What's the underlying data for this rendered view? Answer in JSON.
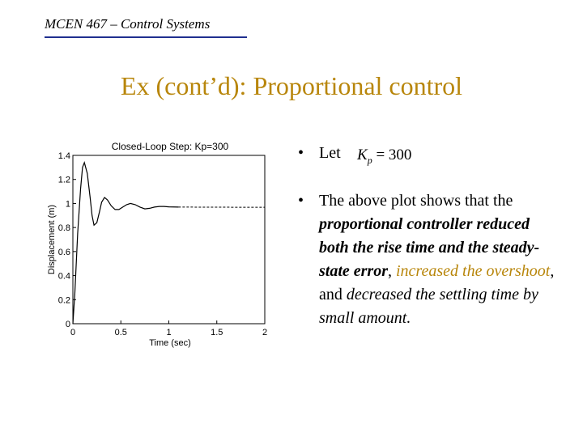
{
  "header": {
    "course": "MCEN 467 – Control Systems"
  },
  "slide": {
    "title": "Ex (cont’d): Proportional control"
  },
  "bullets": {
    "dot": "•",
    "let_label": "Let",
    "kp_symbol": "K",
    "kp_subscript": "p",
    "kp_value": "= 300",
    "text_1": "The above plot shows that the ",
    "emph_1": "proportional controller reduced both the rise time and the steady-state error",
    "text_2": ", ",
    "gold_1": "increased the overshoot",
    "text_3": ", and ",
    "italic_1": "decreased the settling time by small amount.",
    "colors": {
      "accent": "#b8860b",
      "rule": "#1f2f8f"
    }
  },
  "chart_data": {
    "type": "line",
    "title": "Closed-Loop Step: Kp=300",
    "xlabel": "Time (sec)",
    "ylabel": "Displacement (m)",
    "xlim": [
      0,
      2
    ],
    "ylim": [
      0,
      1.4
    ],
    "x_ticks": [
      "0",
      "0.5",
      "1",
      "1.5",
      "2"
    ],
    "y_ticks": [
      "0",
      "0.2",
      "0.4",
      "0.6",
      "0.8",
      "1",
      "1.2",
      "1.4"
    ],
    "grid": false,
    "series": [
      {
        "values_x": [
          0,
          0.02,
          0.05,
          0.08,
          0.1,
          0.12,
          0.15,
          0.18,
          0.2,
          0.22,
          0.25,
          0.28,
          0.3,
          0.33,
          0.36,
          0.4,
          0.44,
          0.48,
          0.52,
          0.56,
          0.6,
          0.65,
          0.7,
          0.75,
          0.8,
          0.85,
          0.9,
          0.95,
          1.0,
          1.1,
          1.2,
          1.5,
          2.0
        ],
        "values_y": [
          0,
          0.25,
          0.75,
          1.12,
          1.3,
          1.34,
          1.25,
          1.05,
          0.9,
          0.82,
          0.84,
          0.94,
          1.01,
          1.05,
          1.03,
          0.98,
          0.95,
          0.95,
          0.97,
          0.99,
          1.0,
          0.99,
          0.97,
          0.955,
          0.96,
          0.97,
          0.975,
          0.975,
          0.972,
          0.97,
          0.968,
          0.968,
          0.968
        ]
      }
    ]
  }
}
